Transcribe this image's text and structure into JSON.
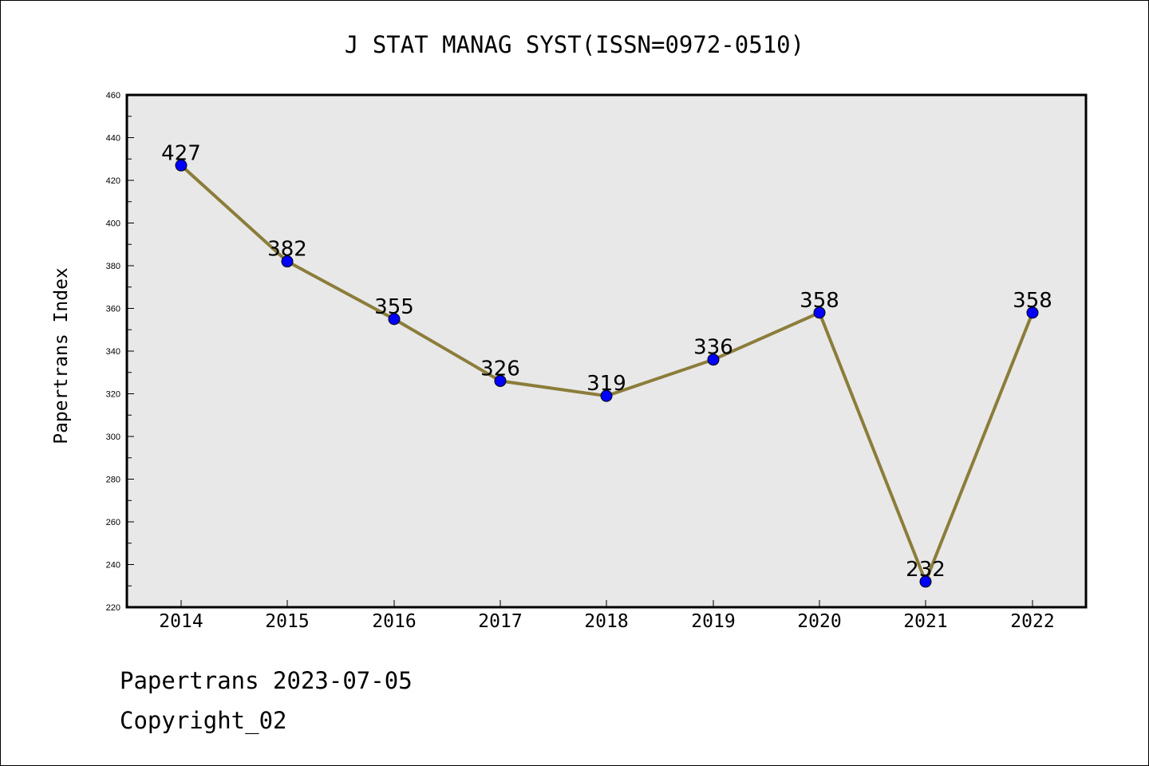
{
  "chart_data": {
    "type": "line",
    "title": "J STAT MANAG SYST(ISSN=0972-0510)",
    "xlabel": "",
    "ylabel": "Papertrans Index",
    "categories": [
      "2014",
      "2015",
      "2016",
      "2017",
      "2018",
      "2019",
      "2020",
      "2021",
      "2022"
    ],
    "series": [
      {
        "values": [
          427,
          382,
          355,
          326,
          319,
          336,
          358,
          232,
          358
        ]
      }
    ],
    "ylim": [
      220,
      460
    ],
    "yticks": [
      220,
      240,
      260,
      280,
      300,
      320,
      340,
      360,
      380,
      400,
      420,
      440,
      460
    ],
    "grid": false,
    "data_labels": true,
    "colors": {
      "line": "#8b7d3a",
      "marker": "#0000ff",
      "plot_background": "#e8e8e8"
    }
  },
  "footer": {
    "line1": "Papertrans 2023-07-05",
    "line2": "Copyright_02"
  }
}
